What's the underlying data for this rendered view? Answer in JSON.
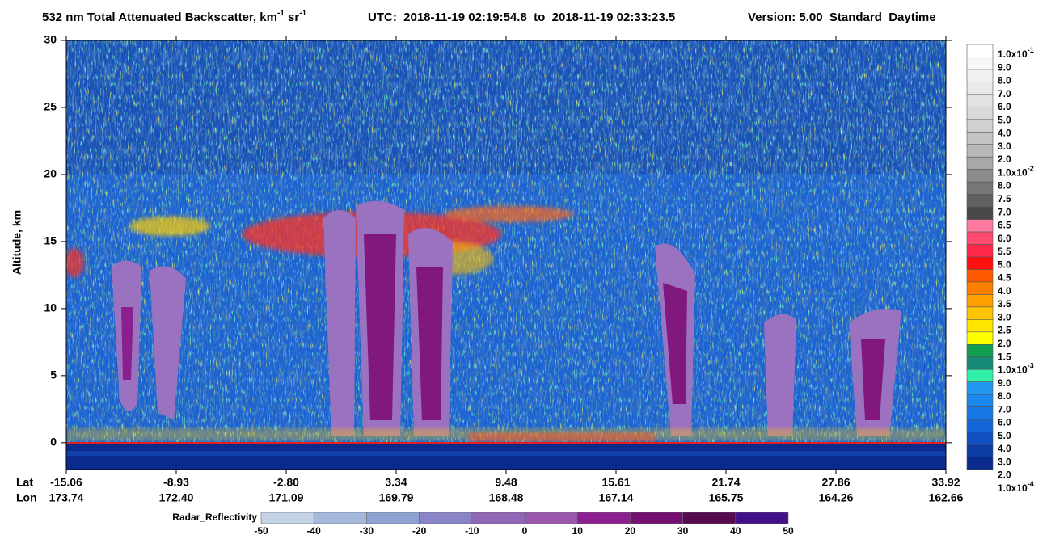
{
  "chart_data": {
    "type": "heatmap",
    "title_parts": [
      "532 nm Total Attenuated Backscatter, km",
      "-1",
      " sr",
      "-1"
    ],
    "utc": "UTC:  2018-11-19 02:19:54.8  to  2018-11-19 02:33:23.5",
    "version": "Version: 5.00  Standard  Daytime",
    "y_label": "Altitude, km",
    "ylim": [
      -2,
      30
    ],
    "yticks": [
      0,
      5,
      10,
      15,
      20,
      25,
      30
    ],
    "lat_title": "Lat",
    "lon_title": "Lon",
    "lat_labels": [
      "-15.06",
      "-8.93",
      "-2.80",
      "3.34",
      "9.48",
      "15.61",
      "21.74",
      "27.86",
      "33.92"
    ],
    "lon_labels": [
      "173.74",
      "172.40",
      "171.09",
      "169.79",
      "168.48",
      "167.14",
      "165.75",
      "164.26",
      "162.66"
    ],
    "colorbar": [
      {
        "value": 0.1,
        "label": "1.0x10",
        "exponent": "-1",
        "color": "#ffffff"
      },
      {
        "value": 0.09,
        "label": "9.0",
        "color": "#f7f7f7"
      },
      {
        "value": 0.08,
        "label": "8.0",
        "color": "#f0f0f0"
      },
      {
        "value": 0.07,
        "label": "7.0",
        "color": "#e9e9e9"
      },
      {
        "value": 0.06,
        "label": "6.0",
        "color": "#e2e2e2"
      },
      {
        "value": 0.05,
        "label": "5.0",
        "color": "#dadada"
      },
      {
        "value": 0.04,
        "label": "4.0",
        "color": "#d0d0d0"
      },
      {
        "value": 0.03,
        "label": "3.0",
        "color": "#c4c4c4"
      },
      {
        "value": 0.02,
        "label": "2.0",
        "color": "#b8b8b8"
      },
      {
        "value": 0.01,
        "label": "1.0x10",
        "exponent": "-2",
        "color": "#a8a8a8"
      },
      {
        "value": 0.008,
        "label": "8.0",
        "color": "#8c8c8c"
      },
      {
        "value": 0.0075,
        "label": "7.5",
        "color": "#767676"
      },
      {
        "value": 0.007,
        "label": "7.0",
        "color": "#606060"
      },
      {
        "value": 0.0065,
        "label": "6.5",
        "color": "#484848"
      },
      {
        "value": 0.006,
        "label": "6.0",
        "color": "#ff7aa0"
      },
      {
        "value": 0.0055,
        "label": "5.5",
        "color": "#ff4a70"
      },
      {
        "value": 0.005,
        "label": "5.0",
        "color": "#ff2848"
      },
      {
        "value": 0.0045,
        "label": "4.5",
        "color": "#ff1010"
      },
      {
        "value": 0.004,
        "label": "4.0",
        "color": "#ff5a00"
      },
      {
        "value": 0.0035,
        "label": "3.5",
        "color": "#ff8000"
      },
      {
        "value": 0.003,
        "label": "3.0",
        "color": "#ffa000"
      },
      {
        "value": 0.0025,
        "label": "2.5",
        "color": "#ffc400"
      },
      {
        "value": 0.002,
        "label": "2.0",
        "color": "#ffe600"
      },
      {
        "value": 0.0015,
        "label": "1.5",
        "color": "#ffff00"
      },
      {
        "value": 0.001,
        "label": "1.0x10",
        "exponent": "-3",
        "color": "#12a050"
      },
      {
        "value": 0.0009,
        "label": "9.0",
        "color": "#178a78"
      },
      {
        "value": 0.0008,
        "label": "8.0",
        "color": "#30f0a8"
      },
      {
        "value": 0.0007,
        "label": "7.0",
        "color": "#2098f0"
      },
      {
        "value": 0.0006,
        "label": "6.0",
        "color": "#1a88ec"
      },
      {
        "value": 0.0005,
        "label": "5.0",
        "color": "#1678e4"
      },
      {
        "value": 0.0004,
        "label": "4.0",
        "color": "#1466d8"
      },
      {
        "value": 0.0003,
        "label": "3.0",
        "color": "#1050c0"
      },
      {
        "value": 0.0002,
        "label": "2.0",
        "color": "#0c3ca4"
      },
      {
        "value": 0.0001,
        "label": "1.0x10",
        "exponent": "-4",
        "color": "#0a2a8c"
      }
    ],
    "radar_label": "Radar_Reflectivity",
    "radar_levels": [
      -50,
      -40,
      -30,
      -20,
      -10,
      0,
      10,
      20,
      30,
      40,
      50
    ],
    "radar_colors": [
      "#c4d4e6",
      "#a4b8dc",
      "#8ea2d4",
      "#8a84c8",
      "#9168b8",
      "#9a58ac",
      "#8c2090",
      "#761070",
      "#560a50",
      "#44108a"
    ]
  }
}
